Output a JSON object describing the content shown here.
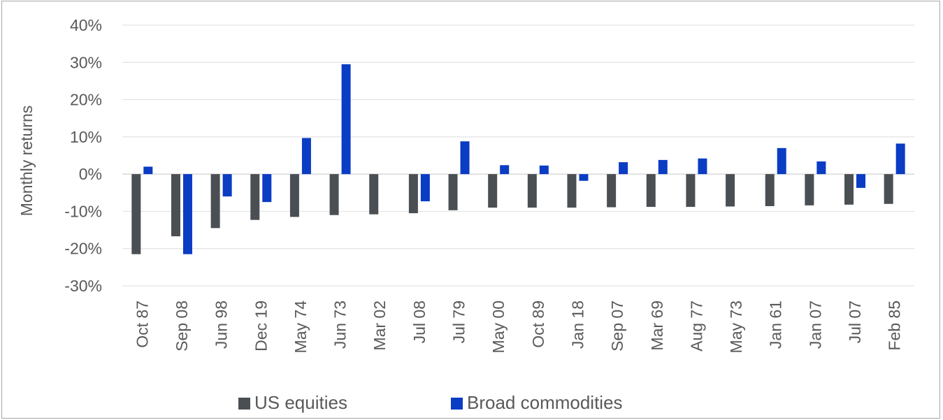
{
  "chart_data": {
    "type": "bar",
    "title": "",
    "xlabel": "",
    "ylabel": "Monthly returns",
    "ylim": [
      -30,
      40
    ],
    "yticks": [
      40,
      30,
      20,
      10,
      0,
      -10,
      -20,
      -30
    ],
    "ytick_labels": [
      "40%",
      "30%",
      "20%",
      "10%",
      "0%",
      "-10%",
      "-20%",
      "-30%"
    ],
    "grid": true,
    "legend_position": "bottom",
    "categories": [
      "Oct 87",
      "Sep 08",
      "Jun 98",
      "Dec 19",
      "May 74",
      "Jun 73",
      "Mar 02",
      "Jul 08",
      "Jul 79",
      "May 00",
      "Oct 89",
      "Jan 18",
      "Sep 07",
      "Mar 69",
      "Aug 77",
      "May 73",
      "Jan 61",
      "Jan 07",
      "Jul 07",
      "Feb 85"
    ],
    "series": [
      {
        "name": "US equities",
        "color": "#4a4f54",
        "values": [
          -21.5,
          -16.7,
          -14.5,
          -12.3,
          -11.5,
          -11.0,
          -10.8,
          -10.5,
          -9.7,
          -9.0,
          -9.0,
          -9.0,
          -8.9,
          -8.8,
          -8.8,
          -8.7,
          -8.6,
          -8.4,
          -8.2,
          -8.0
        ]
      },
      {
        "name": "Broad commodities",
        "color": "#0a3cc4",
        "values": [
          2.0,
          -21.5,
          -6.0,
          -7.5,
          9.7,
          29.5,
          0.0,
          -7.3,
          8.8,
          2.4,
          2.3,
          -1.8,
          3.2,
          3.8,
          4.2,
          0.0,
          7.0,
          3.4,
          -3.7,
          8.2
        ]
      }
    ]
  }
}
